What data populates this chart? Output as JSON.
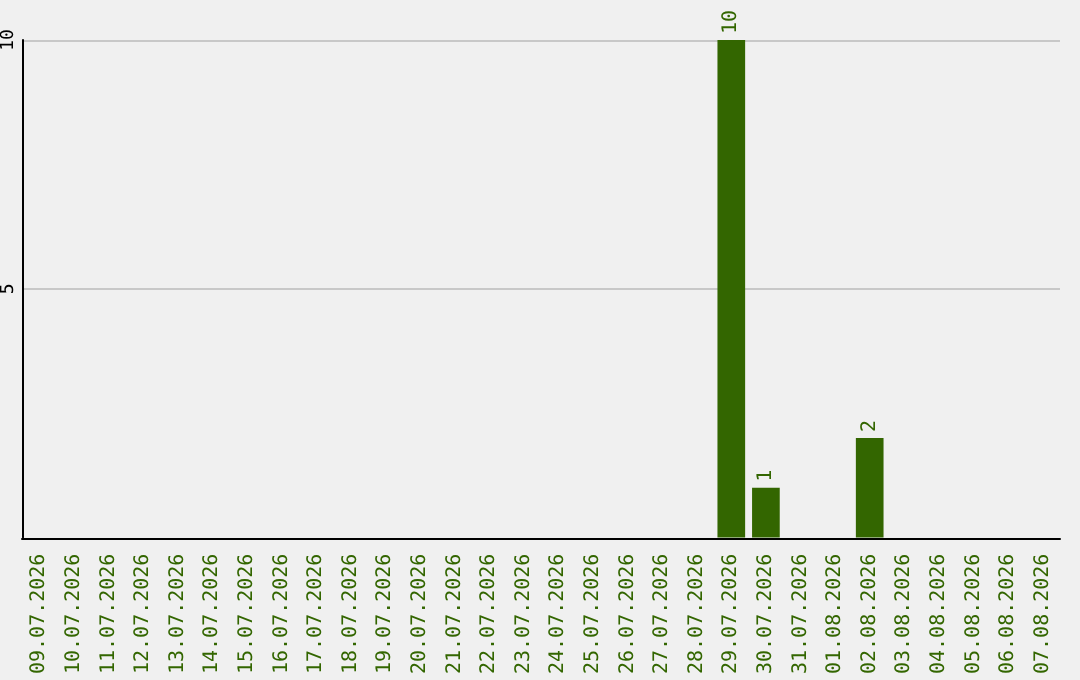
{
  "chart_data": {
    "type": "bar",
    "categories": [
      "09.07.2026",
      "10.07.2026",
      "11.07.2026",
      "12.07.2026",
      "13.07.2026",
      "14.07.2026",
      "15.07.2026",
      "16.07.2026",
      "17.07.2026",
      "18.07.2026",
      "19.07.2026",
      "20.07.2026",
      "21.07.2026",
      "22.07.2026",
      "23.07.2026",
      "24.07.2026",
      "25.07.2026",
      "26.07.2026",
      "27.07.2026",
      "28.07.2026",
      "29.07.2026",
      "30.07.2026",
      "31.07.2026",
      "01.08.2026",
      "02.08.2026",
      "03.08.2026",
      "04.08.2026",
      "05.08.2026",
      "06.08.2026",
      "07.08.2026"
    ],
    "values": [
      0,
      0,
      0,
      0,
      0,
      0,
      0,
      0,
      0,
      0,
      0,
      0,
      0,
      0,
      0,
      0,
      0,
      0,
      0,
      0,
      10,
      1,
      0,
      0,
      2,
      0,
      0,
      0,
      0,
      0
    ],
    "value_labels": [
      null,
      null,
      null,
      null,
      null,
      null,
      null,
      null,
      null,
      null,
      null,
      null,
      null,
      null,
      null,
      null,
      null,
      null,
      null,
      null,
      "10",
      "1",
      null,
      null,
      "2",
      null,
      null,
      null,
      null,
      null
    ],
    "color": "#336600",
    "ylim": [
      0,
      10
    ],
    "yticks": [
      5,
      10
    ],
    "grid": "y"
  }
}
